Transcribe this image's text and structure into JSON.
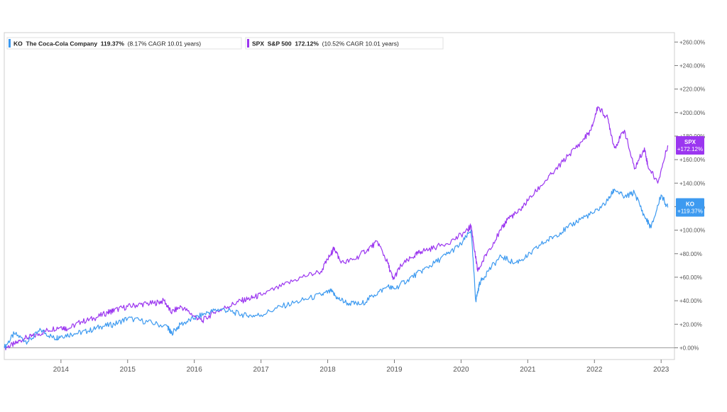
{
  "colors": {
    "ko": "#3d9af0",
    "spx": "#9b36f0",
    "axis": "#7a7a7a",
    "tick_text": "#555555",
    "zero_line": "#999999",
    "frame": "#cfcfcf"
  },
  "chart_data": {
    "type": "line",
    "xlim": [
      2013.15,
      2023.2
    ],
    "ylim": [
      -10,
      268
    ],
    "y_axis_side": "right",
    "grid": false,
    "legend_position": "top-left",
    "x_ticks": [
      {
        "value": 2014,
        "label": "2014"
      },
      {
        "value": 2015,
        "label": "2015"
      },
      {
        "value": 2016,
        "label": "2016"
      },
      {
        "value": 2017,
        "label": "2017"
      },
      {
        "value": 2018,
        "label": "2018"
      },
      {
        "value": 2019,
        "label": "2019"
      },
      {
        "value": 2020,
        "label": "2020"
      },
      {
        "value": 2021,
        "label": "2021"
      },
      {
        "value": 2022,
        "label": "2022"
      },
      {
        "value": 2023,
        "label": "2023"
      }
    ],
    "y_ticks": [
      {
        "value": 0,
        "label": "+0.00%"
      },
      {
        "value": 20,
        "label": "+20.00%"
      },
      {
        "value": 40,
        "label": "+40.00%"
      },
      {
        "value": 60,
        "label": "+60.00%"
      },
      {
        "value": 80,
        "label": "+80.00%"
      },
      {
        "value": 100,
        "label": "+100.00%"
      },
      {
        "value": 120,
        "label": "+120.00%"
      },
      {
        "value": 140,
        "label": "+140.00%"
      },
      {
        "value": 160,
        "label": "+160.00%"
      },
      {
        "value": 180,
        "label": "+180.00%"
      },
      {
        "value": 200,
        "label": "+200.00%"
      },
      {
        "value": 220,
        "label": "+220.00%"
      },
      {
        "value": 240,
        "label": "+240.00%"
      },
      {
        "value": 260,
        "label": "+260.00%"
      }
    ],
    "legend": [
      {
        "key": "ko",
        "ticker": "KO",
        "name": "The Coca-Cola Company",
        "value": "119.37%",
        "detail": "(8.17% CAGR 10.01 years)"
      },
      {
        "key": "spx",
        "ticker": "SPX",
        "name": "S&P 500",
        "value": "172.12%",
        "detail": "(10.52% CAGR 10.01 years)"
      }
    ],
    "end_labels": [
      {
        "key": "spx",
        "ticker": "SPX",
        "value_text": "+172.12%",
        "value": 172.12
      },
      {
        "key": "ko",
        "ticker": "KO",
        "value_text": "+119.37%",
        "value": 119.37
      }
    ],
    "series": [
      {
        "key": "spx",
        "name": "SPX",
        "x": [
          2013.15,
          2013.3,
          2013.45,
          2013.6,
          2013.8,
          2014.0,
          2014.1,
          2014.3,
          2014.5,
          2014.7,
          2014.8,
          2015.0,
          2015.2,
          2015.4,
          2015.55,
          2015.65,
          2015.8,
          2016.0,
          2016.12,
          2016.3,
          2016.5,
          2016.7,
          2016.85,
          2017.0,
          2017.3,
          2017.6,
          2017.9,
          2018.05,
          2018.1,
          2018.2,
          2018.4,
          2018.6,
          2018.75,
          2018.9,
          2018.98,
          2019.1,
          2019.3,
          2019.4,
          2019.6,
          2019.9,
          2020.1,
          2020.15,
          2020.22,
          2020.25,
          2020.4,
          2020.6,
          2020.7,
          2020.85,
          2021.0,
          2021.2,
          2021.4,
          2021.6,
          2021.8,
          2021.95,
          2022.05,
          2022.2,
          2022.3,
          2022.45,
          2022.6,
          2022.75,
          2022.8,
          2022.95,
          2023.1
        ],
        "values": [
          0,
          3,
          8,
          10,
          15,
          18,
          16,
          22,
          25,
          30,
          32,
          35,
          37,
          38,
          40,
          30,
          35,
          27,
          23,
          30,
          35,
          40,
          42,
          45,
          52,
          60,
          65,
          80,
          85,
          72,
          75,
          84,
          90,
          72,
          58,
          70,
          78,
          82,
          85,
          92,
          100,
          104,
          76,
          65,
          82,
          100,
          110,
          115,
          125,
          138,
          150,
          163,
          175,
          185,
          205,
          195,
          170,
          185,
          152,
          170,
          155,
          140,
          172.12
        ]
      },
      {
        "key": "ko",
        "name": "KO",
        "x": [
          2013.15,
          2013.3,
          2013.5,
          2013.7,
          2013.9,
          2014.0,
          2014.2,
          2014.4,
          2014.6,
          2014.8,
          2015.0,
          2015.3,
          2015.6,
          2015.65,
          2015.8,
          2016.0,
          2016.2,
          2016.4,
          2016.6,
          2016.8,
          2017.0,
          2017.3,
          2017.6,
          2017.9,
          2018.05,
          2018.15,
          2018.3,
          2018.5,
          2018.7,
          2018.9,
          2019.0,
          2019.2,
          2019.4,
          2019.6,
          2019.8,
          2020.0,
          2020.15,
          2020.22,
          2020.28,
          2020.4,
          2020.6,
          2020.8,
          2021.0,
          2021.2,
          2021.4,
          2021.6,
          2021.8,
          2022.0,
          2022.2,
          2022.3,
          2022.45,
          2022.6,
          2022.75,
          2022.85,
          2023.0,
          2023.1
        ],
        "values": [
          0,
          12,
          5,
          15,
          8,
          10,
          12,
          14,
          18,
          20,
          25,
          22,
          18,
          12,
          20,
          25,
          30,
          33,
          30,
          27,
          28,
          35,
          40,
          45,
          48,
          42,
          38,
          37,
          45,
          52,
          50,
          58,
          65,
          72,
          80,
          88,
          100,
          40,
          55,
          65,
          78,
          72,
          78,
          88,
          95,
          102,
          110,
          115,
          125,
          135,
          128,
          132,
          112,
          102,
          130,
          119.37
        ]
      }
    ]
  }
}
